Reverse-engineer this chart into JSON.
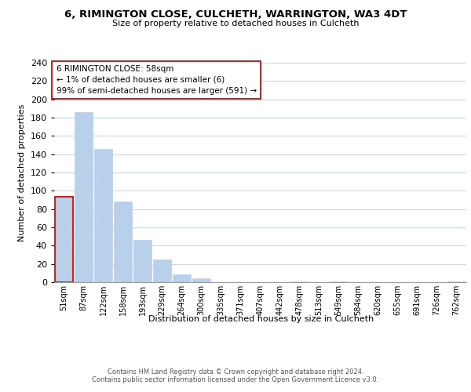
{
  "title1": "6, RIMINGTON CLOSE, CULCHETH, WARRINGTON, WA3 4DT",
  "title2": "Size of property relative to detached houses in Culcheth",
  "xlabel": "Distribution of detached houses by size in Culcheth",
  "ylabel": "Number of detached properties",
  "bar_labels": [
    "51sqm",
    "87sqm",
    "122sqm",
    "158sqm",
    "193sqm",
    "229sqm",
    "264sqm",
    "300sqm",
    "335sqm",
    "371sqm",
    "407sqm",
    "442sqm",
    "478sqm",
    "513sqm",
    "549sqm",
    "584sqm",
    "620sqm",
    "655sqm",
    "691sqm",
    "726sqm",
    "762sqm"
  ],
  "bar_values": [
    93,
    186,
    146,
    88,
    46,
    25,
    9,
    4,
    0,
    0,
    0,
    0,
    1,
    0,
    1,
    0,
    0,
    0,
    0,
    0,
    1
  ],
  "bar_color": "#b8d0ea",
  "highlight_bar_index": 0,
  "highlight_bar_edge_color": "#cc2222",
  "annotation_text": "6 RIMINGTON CLOSE: 58sqm\n← 1% of detached houses are smaller (6)\n99% of semi-detached houses are larger (591) →",
  "annotation_box_color": "#ffffff",
  "annotation_box_edge_color": "#cc2222",
  "ylim": [
    0,
    240
  ],
  "yticks": [
    0,
    20,
    40,
    60,
    80,
    100,
    120,
    140,
    160,
    180,
    200,
    220,
    240
  ],
  "footer_text": "Contains HM Land Registry data © Crown copyright and database right 2024.\nContains public sector information licensed under the Open Government Licence v3.0.",
  "bg_color": "#ffffff",
  "grid_color": "#c8d8e8"
}
